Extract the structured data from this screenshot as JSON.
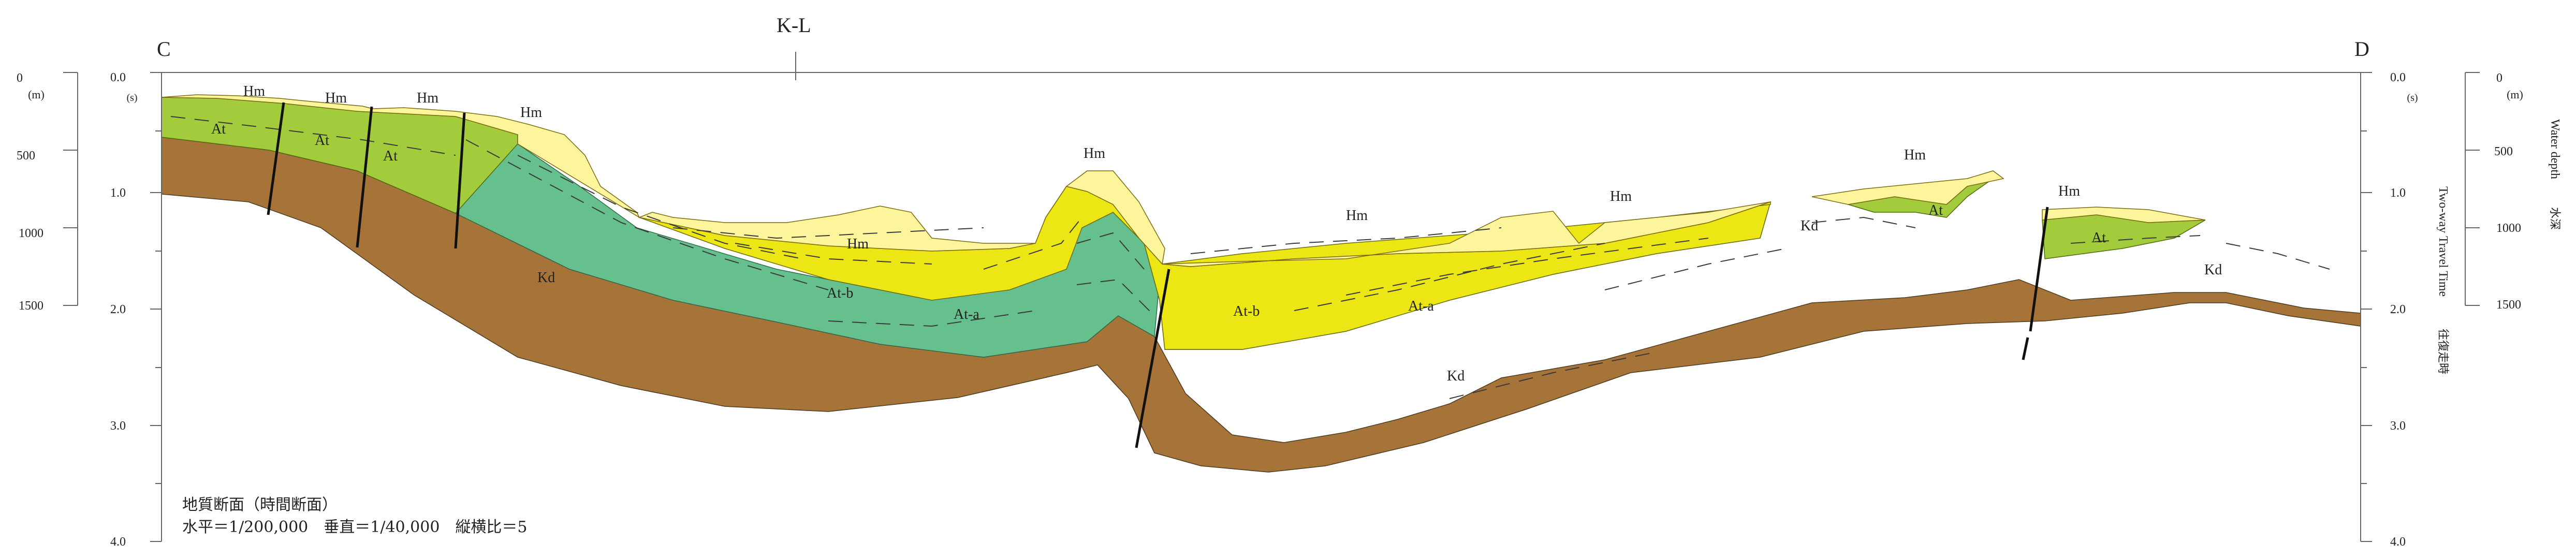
{
  "title_left": "C",
  "title_right": "D",
  "crossline_label": "K-L",
  "left_depth_axis": {
    "ticks": [
      "0",
      "500",
      "1000",
      "1500"
    ],
    "unit": "(m)"
  },
  "time_axis": {
    "ticks": [
      "0.0",
      "1.0",
      "2.0",
      "3.0",
      "4.0"
    ],
    "unit": "(s)"
  },
  "right_time_axis": {
    "ticks": [
      "0.0",
      "1.0",
      "2.0",
      "3.0",
      "4.0"
    ],
    "unit": "(s)",
    "label_en": "Two-way Travel Time",
    "label_jp": "往復走時"
  },
  "right_depth_axis": {
    "ticks": [
      "0",
      "500",
      "1000",
      "1500"
    ],
    "unit": "(m)",
    "label_en": "Water depth",
    "label_jp": "水深"
  },
  "units": {
    "Hm": "Hm",
    "At": "At",
    "Atb": "At-b",
    "Ata": "At-a",
    "Kd": "Kd"
  },
  "colors": {
    "Hm": "#fdf59c",
    "At": "#a3cc3c",
    "Atb": "#ece615",
    "Ata": "#66c08d",
    "Kd": "#a67438"
  },
  "caption": {
    "line1": "地質断面（時間断面）",
    "line2": "水平＝1/200,000　垂直＝1/40,000　縦横比＝5"
  }
}
